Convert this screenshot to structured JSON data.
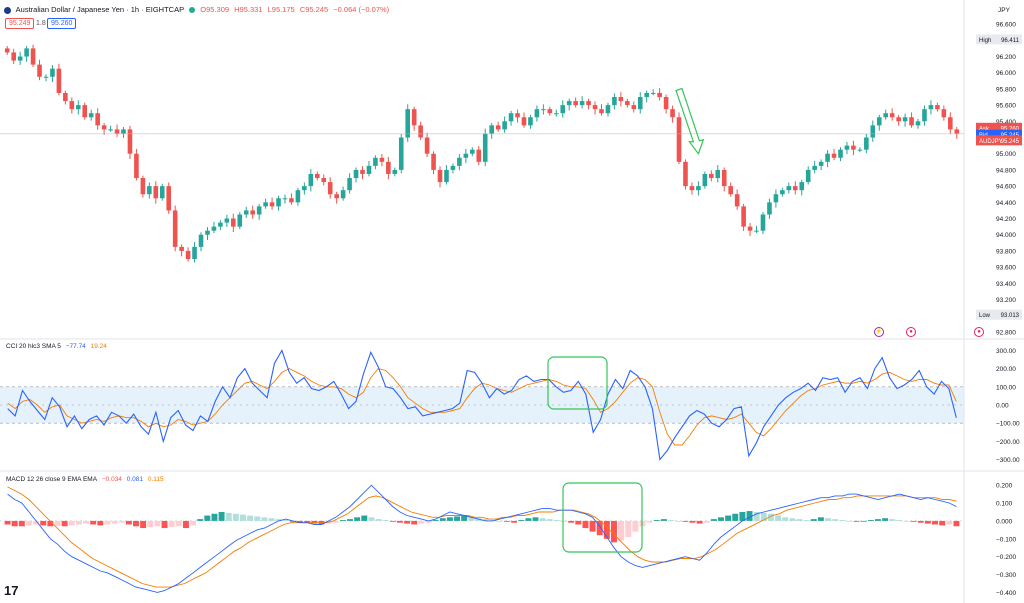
{
  "header": {
    "symbol_title": "Australian Dollar / Japanese Yen · 1h · EIGHTCAP",
    "ohlc": {
      "o": "O95.309",
      "h": "H95.331",
      "l": "L95.175",
      "c": "C95.245",
      "chg": "−0.064 (−0.07%)"
    },
    "bid_box": "95.249",
    "spread": "1.8",
    "ask_box": "95.260",
    "currency": "JPY"
  },
  "price_axis": {
    "ticks": [
      "96.600",
      "96.400",
      "96.200",
      "96.000",
      "95.800",
      "95.600",
      "95.400",
      "95.200",
      "95.000",
      "94.800",
      "94.600",
      "94.400",
      "94.200",
      "94.000",
      "93.800",
      "93.600",
      "93.400",
      "93.200",
      "93.000",
      "92.800"
    ],
    "high_label": "High",
    "high_value": "96.411",
    "low_label": "Low",
    "low_value": "93.013",
    "ask_label": "Ask",
    "ask_value": "95.260",
    "bid_label": "Bid",
    "bid_value": "95.245",
    "symbol_tag": "AUDJPY",
    "symbol_value": "95.245"
  },
  "cci": {
    "title": "CCI 20 hlc3 SMA 5",
    "value1": "−77.74",
    "value2": "19.24",
    "ticks": [
      "300.00",
      "200.00",
      "100.00",
      "0.00",
      "−100.00",
      "−200.00",
      "−300.00"
    ]
  },
  "macd": {
    "title": "MACD 12 26 close 9 EMA EMA",
    "hist_value": "−0.034",
    "macd_value": "0.081",
    "signal_value": "0.115",
    "ticks": [
      "0.200",
      "0.100",
      "0.000",
      "−0.100",
      "−0.200",
      "−0.300",
      "−0.400"
    ]
  },
  "colors": {
    "up": "#26a69a",
    "down": "#ef5350",
    "cci": "#2962ff",
    "cci_ma": "#f57c00",
    "band": "#d6eaf8",
    "annot": "#36c45a",
    "macd": "#2962ff",
    "signal": "#f57c00"
  },
  "icons": [
    "tradingview-logo-icon",
    "lightning-icon",
    "target-icon",
    "alert-icon"
  ],
  "chart_data": [
    {
      "type": "candlestick",
      "title": "Australian Dollar / Japanese Yen · 1h · EIGHTCAP",
      "ylim": [
        92.75,
        96.7
      ],
      "close": [
        96.25,
        96.15,
        96.2,
        96.3,
        96.1,
        95.95,
        95.95,
        96.05,
        95.75,
        95.65,
        95.55,
        95.6,
        95.45,
        95.5,
        95.35,
        95.3,
        95.3,
        95.25,
        95.3,
        95.0,
        94.7,
        94.5,
        94.6,
        94.45,
        94.6,
        94.3,
        93.85,
        93.8,
        93.7,
        93.85,
        94.0,
        94.05,
        94.1,
        94.15,
        94.2,
        94.1,
        94.25,
        94.3,
        94.25,
        94.35,
        94.4,
        94.35,
        94.45,
        94.45,
        94.4,
        94.55,
        94.6,
        94.75,
        94.7,
        94.65,
        94.5,
        94.45,
        94.55,
        94.7,
        94.8,
        94.75,
        94.85,
        94.95,
        94.9,
        94.75,
        94.8,
        95.2,
        95.55,
        95.35,
        95.2,
        95.0,
        94.8,
        94.65,
        94.8,
        94.85,
        94.95,
        95.0,
        95.05,
        94.9,
        95.25,
        95.35,
        95.3,
        95.4,
        95.5,
        95.45,
        95.35,
        95.45,
        95.55,
        95.55,
        95.5,
        95.5,
        95.6,
        95.65,
        95.6,
        95.65,
        95.6,
        95.55,
        95.5,
        95.6,
        95.7,
        95.65,
        95.6,
        95.55,
        95.7,
        95.75,
        95.75,
        95.7,
        95.55,
        95.45,
        94.9,
        94.6,
        94.55,
        94.6,
        94.75,
        94.7,
        94.8,
        94.6,
        94.5,
        94.35,
        94.1,
        94.05,
        94.05,
        94.25,
        94.4,
        94.5,
        94.55,
        94.6,
        94.55,
        94.65,
        94.8,
        94.85,
        94.9,
        95.0,
        94.95,
        95.05,
        95.1,
        95.05,
        95.05,
        95.2,
        95.35,
        95.45,
        95.5,
        95.45,
        95.4,
        95.45,
        95.35,
        95.4,
        95.55,
        95.6,
        95.55,
        95.45,
        95.3,
        95.25
      ]
    },
    {
      "type": "line",
      "title": "CCI 20 hlc3 SMA 5",
      "ylim": [
        -330,
        330
      ],
      "series": [
        {
          "name": "CCI",
          "values": [
            -20,
            -60,
            80,
            20,
            -30,
            -80,
            40,
            -10,
            -120,
            -60,
            -130,
            -80,
            -60,
            -110,
            -40,
            -60,
            -100,
            -50,
            -120,
            -160,
            -40,
            -200,
            -70,
            -30,
            -110,
            -140,
            -60,
            -90,
            20,
            100,
            40,
            150,
            200,
            120,
            80,
            40,
            230,
            300,
            180,
            120,
            150,
            90,
            80,
            100,
            130,
            60,
            -20,
            20,
            170,
            290,
            210,
            100,
            90,
            40,
            -20,
            -10,
            -60,
            -50,
            -40,
            -30,
            -20,
            10,
            190,
            180,
            120,
            40,
            90,
            60,
            80,
            140,
            160,
            130,
            140,
            140,
            100,
            70,
            80,
            130,
            60,
            -150,
            -80,
            60,
            140,
            90,
            190,
            160,
            100,
            -20,
            -300,
            -250,
            -180,
            -120,
            -60,
            -30,
            -50,
            -100,
            -120,
            -80,
            -20,
            -10,
            -280,
            -210,
            -120,
            -60,
            0,
            40,
            70,
            90,
            120,
            80,
            150,
            140,
            150,
            70,
            130,
            150,
            90,
            200,
            260,
            150,
            90,
            110,
            140,
            190,
            100,
            60,
            130,
            90,
            -70
          ]
        },
        {
          "name": "SMA",
          "values": [
            10,
            -20,
            20,
            30,
            0,
            -40,
            -10,
            0,
            -60,
            -80,
            -100,
            -90,
            -80,
            -90,
            -70,
            -60,
            -70,
            -70,
            -90,
            -120,
            -100,
            -120,
            -110,
            -80,
            -90,
            -110,
            -100,
            -90,
            -50,
            0,
            40,
            80,
            120,
            130,
            110,
            90,
            130,
            180,
            200,
            180,
            160,
            130,
            110,
            100,
            100,
            90,
            60,
            40,
            70,
            150,
            200,
            190,
            150,
            100,
            40,
            10,
            -20,
            -40,
            -40,
            -40,
            -30,
            -20,
            40,
            90,
            120,
            110,
            90,
            80,
            70,
            90,
            110,
            120,
            130,
            140,
            130,
            110,
            100,
            100,
            90,
            30,
            -40,
            -20,
            20,
            70,
            120,
            150,
            140,
            100,
            -40,
            -160,
            -220,
            -220,
            -170,
            -110,
            -70,
            -60,
            -70,
            -80,
            -70,
            -50,
            -100,
            -150,
            -170,
            -130,
            -80,
            -30,
            10,
            50,
            80,
            90,
            110,
            120,
            130,
            120,
            120,
            130,
            120,
            140,
            170,
            180,
            160,
            140,
            130,
            140,
            140,
            120,
            110,
            110,
            20
          ]
        }
      ]
    },
    {
      "type": "bar+line",
      "title": "MACD 12 26 close 9 EMA EMA",
      "ylim": [
        -0.42,
        0.24
      ],
      "series": [
        {
          "name": "Histogram",
          "values": [
            -0.02,
            -0.03,
            -0.03,
            -0.025,
            -0.02,
            -0.025,
            -0.03,
            -0.028,
            -0.03,
            -0.025,
            -0.02,
            -0.015,
            -0.02,
            -0.025,
            -0.02,
            -0.015,
            -0.01,
            -0.02,
            -0.03,
            -0.04,
            -0.035,
            -0.03,
            -0.04,
            -0.035,
            -0.03,
            -0.04,
            -0.025,
            0.01,
            0.03,
            0.04,
            0.05,
            0.045,
            0.04,
            0.035,
            0.03,
            0.025,
            0.02,
            0.015,
            0.01,
            0.005,
            -0.005,
            -0.01,
            -0.01,
            -0.015,
            -0.02,
            -0.015,
            -0.01,
            0.005,
            0.01,
            0.02,
            0.03,
            0.02,
            0.01,
            0.005,
            -0.005,
            -0.01,
            -0.015,
            -0.02,
            -0.015,
            -0.01,
            0.005,
            0.015,
            0.02,
            0.025,
            0.03,
            0.02,
            0.015,
            0.01,
            0.005,
            0.0,
            -0.005,
            -0.01,
            0.005,
            0.015,
            0.02,
            0.015,
            0.01,
            0.005,
            0.0,
            -0.01,
            -0.02,
            -0.04,
            -0.06,
            -0.08,
            -0.1,
            -0.12,
            -0.11,
            -0.09,
            -0.06,
            -0.03,
            -0.01,
            0.005,
            0.01,
            0.005,
            0.0,
            -0.005,
            -0.01,
            -0.015,
            -0.01,
            0.01,
            0.02,
            0.03,
            0.04,
            0.05,
            0.055,
            0.05,
            0.045,
            0.04,
            0.03,
            0.02,
            0.015,
            0.01,
            0.005,
            0.01,
            0.02,
            0.015,
            0.01,
            0.005,
            0.0,
            -0.005,
            0.0,
            0.005,
            0.01,
            0.015,
            0.01,
            0.005,
            0.0,
            -0.005,
            -0.01,
            -0.015,
            -0.02,
            -0.025,
            -0.02,
            -0.03
          ]
        },
        {
          "name": "MACD",
          "values": [
            0.15,
            0.12,
            0.1,
            0.05,
            0.0,
            -0.05,
            -0.1,
            -0.13,
            -0.17,
            -0.2,
            -0.22,
            -0.24,
            -0.26,
            -0.28,
            -0.29,
            -0.31,
            -0.33,
            -0.35,
            -0.37,
            -0.38,
            -0.39,
            -0.4,
            -0.39,
            -0.37,
            -0.35,
            -0.32,
            -0.29,
            -0.26,
            -0.23,
            -0.2,
            -0.17,
            -0.14,
            -0.11,
            -0.09,
            -0.07,
            -0.05,
            -0.04,
            -0.02,
            0.0,
            0.01,
            0.0,
            -0.01,
            -0.01,
            -0.02,
            -0.02,
            0.0,
            0.02,
            0.05,
            0.08,
            0.12,
            0.16,
            0.2,
            0.16,
            0.12,
            0.08,
            0.05,
            0.03,
            0.02,
            0.01,
            0.0,
            0.01,
            0.03,
            0.05,
            0.04,
            0.03,
            0.02,
            0.01,
            0.0,
            0.0,
            0.01,
            0.02,
            0.03,
            0.04,
            0.05,
            0.06,
            0.07,
            0.07,
            0.06,
            0.06,
            0.06,
            0.05,
            0.04,
            0.02,
            -0.03,
            -0.09,
            -0.15,
            -0.2,
            -0.23,
            -0.25,
            -0.26,
            -0.25,
            -0.24,
            -0.23,
            -0.22,
            -0.21,
            -0.2,
            -0.21,
            -0.22,
            -0.18,
            -0.13,
            -0.09,
            -0.06,
            -0.03,
            0.0,
            0.02,
            0.04,
            0.05,
            0.06,
            0.07,
            0.08,
            0.09,
            0.1,
            0.11,
            0.12,
            0.13,
            0.13,
            0.14,
            0.14,
            0.15,
            0.15,
            0.14,
            0.13,
            0.12,
            0.13,
            0.14,
            0.15,
            0.14,
            0.13,
            0.12,
            0.13,
            0.12,
            0.11,
            0.1,
            0.08
          ]
        },
        {
          "name": "Signal",
          "values": [
            0.19,
            0.17,
            0.15,
            0.12,
            0.08,
            0.04,
            0.0,
            -0.04,
            -0.08,
            -0.12,
            -0.15,
            -0.18,
            -0.21,
            -0.23,
            -0.25,
            -0.27,
            -0.29,
            -0.31,
            -0.33,
            -0.35,
            -0.36,
            -0.37,
            -0.37,
            -0.37,
            -0.36,
            -0.35,
            -0.33,
            -0.31,
            -0.29,
            -0.26,
            -0.23,
            -0.2,
            -0.17,
            -0.15,
            -0.12,
            -0.1,
            -0.08,
            -0.06,
            -0.04,
            -0.02,
            -0.01,
            -0.01,
            -0.01,
            -0.01,
            -0.01,
            -0.01,
            0.0,
            0.02,
            0.04,
            0.07,
            0.1,
            0.13,
            0.14,
            0.13,
            0.11,
            0.09,
            0.07,
            0.05,
            0.04,
            0.03,
            0.02,
            0.02,
            0.03,
            0.03,
            0.03,
            0.03,
            0.02,
            0.02,
            0.01,
            0.01,
            0.02,
            0.02,
            0.03,
            0.03,
            0.04,
            0.05,
            0.05,
            0.05,
            0.06,
            0.06,
            0.06,
            0.05,
            0.04,
            0.02,
            -0.01,
            -0.05,
            -0.09,
            -0.13,
            -0.17,
            -0.2,
            -0.22,
            -0.23,
            -0.23,
            -0.23,
            -0.22,
            -0.21,
            -0.21,
            -0.21,
            -0.2,
            -0.18,
            -0.16,
            -0.13,
            -0.1,
            -0.07,
            -0.05,
            -0.03,
            -0.01,
            0.01,
            0.03,
            0.04,
            0.06,
            0.07,
            0.08,
            0.09,
            0.1,
            0.11,
            0.12,
            0.12,
            0.13,
            0.13,
            0.14,
            0.14,
            0.14,
            0.14,
            0.14,
            0.14,
            0.14,
            0.14,
            0.13,
            0.13,
            0.13,
            0.13,
            0.12,
            0.12,
            0.11
          ]
        }
      ]
    }
  ]
}
